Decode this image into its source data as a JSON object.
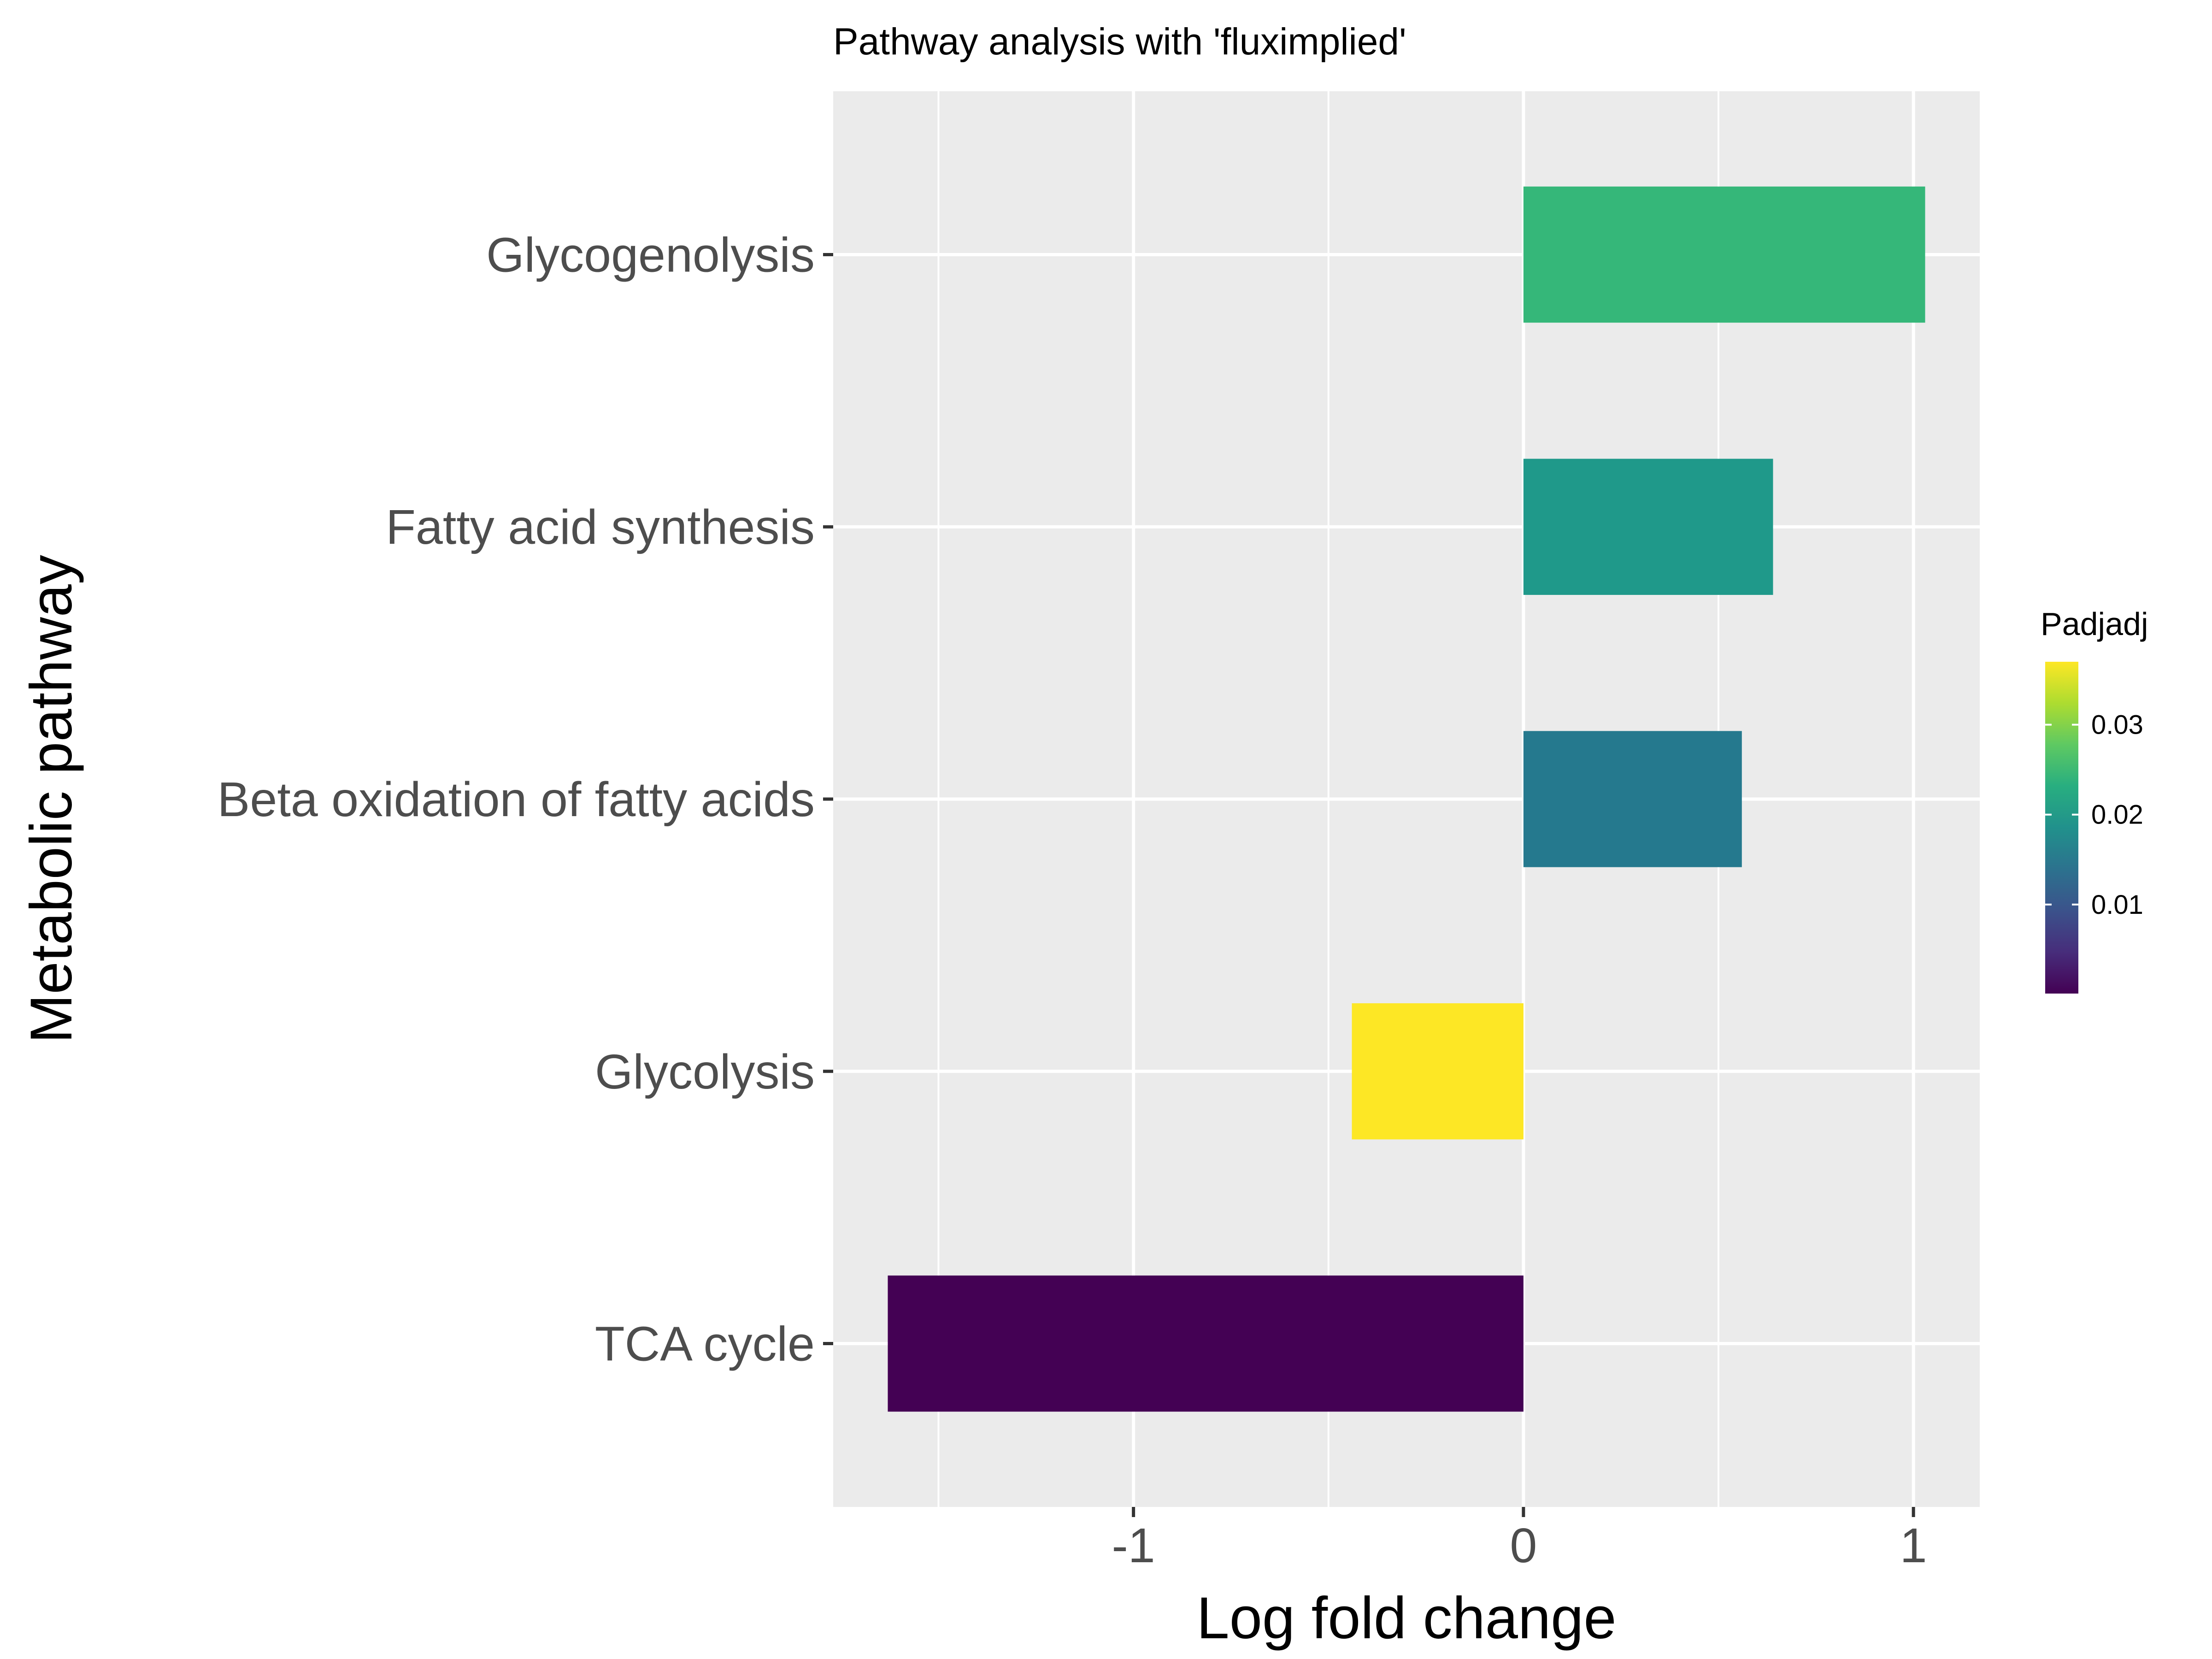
{
  "chart_data": {
    "type": "bar",
    "orientation": "horizontal",
    "title": "Pathway analysis with 'fluximplied'",
    "xlabel": "Log fold change",
    "ylabel": "Metabolic pathway",
    "categories": [
      "Glycogenolysis",
      "Fatty acid synthesis",
      "Beta oxidation of fatty acids",
      "Glycolysis",
      "TCA cycle"
    ],
    "values": [
      1.03,
      0.64,
      0.56,
      -0.44,
      -1.63
    ],
    "padj": [
      0.024,
      0.019,
      0.017,
      0.037,
      0.0001
    ],
    "bar_colors": [
      "#35B779",
      "#1F998A",
      "#25798E",
      "#FDE725",
      "#440154"
    ],
    "xlim": [
      -1.77,
      1.17
    ],
    "x_ticks": [
      -1,
      0,
      1
    ],
    "x_tick_labels": [
      "-1",
      "0",
      "1"
    ],
    "grid": true,
    "legend": {
      "title": "Padjadj",
      "placement": "right",
      "range": [
        0.0001,
        0.037
      ],
      "ticks": [
        0.01,
        0.02,
        0.03
      ],
      "tick_labels": [
        "0.01",
        "0.02",
        "0.03"
      ],
      "colors": [
        "#440154",
        "#472D7B",
        "#3B528B",
        "#2C728E",
        "#21918C",
        "#28AE80",
        "#5EC962",
        "#ADDC30",
        "#FDE725"
      ]
    },
    "panel_color": "#EBEBEB",
    "grid_color": "#FFFFFF"
  }
}
